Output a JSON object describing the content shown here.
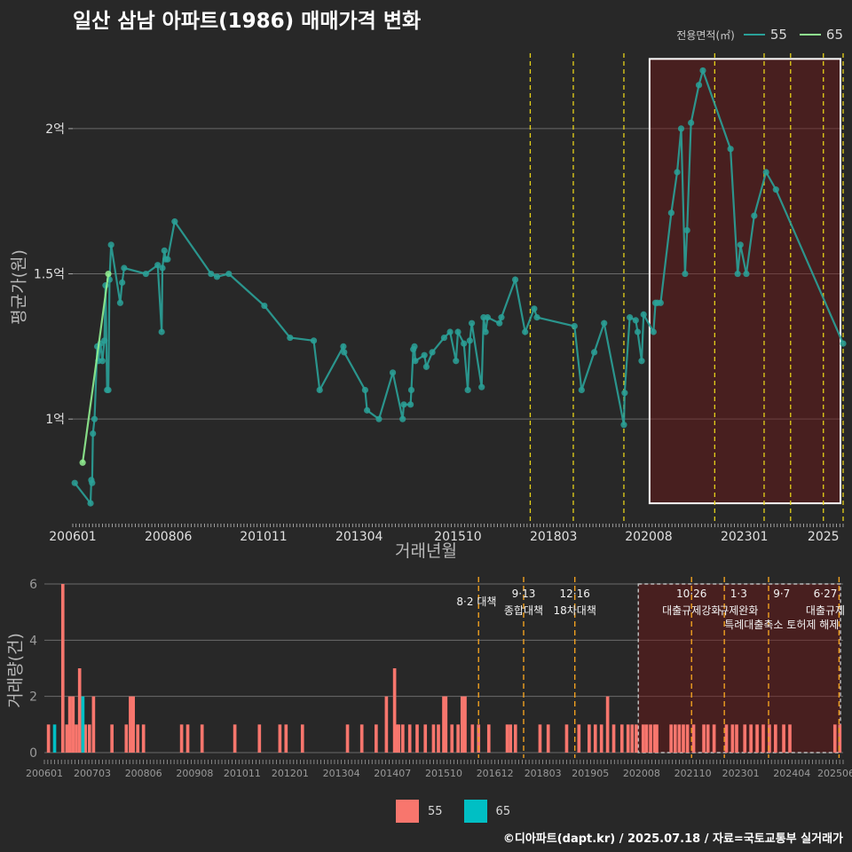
{
  "title": "일산 삼남 아파트(1986) 매매가격 변화",
  "footer": "©디아파트(dapt.kr) / 2025.07.18 / 자료=국토교통부 실거래가",
  "legend_top": {
    "title": "전용면적(㎡)",
    "items": [
      {
        "label": "55",
        "color": "#2aa198"
      },
      {
        "label": "65",
        "color": "#90ee90"
      }
    ]
  },
  "legend_bottom": {
    "items": [
      {
        "label": "55",
        "color": "#f8766d"
      },
      {
        "label": "65",
        "color": "#00bfc4"
      }
    ]
  },
  "chart_data": [
    {
      "type": "line",
      "title": "일산 삼남 아파트(1986) 매매가격 변화",
      "xlabel": "거래년월",
      "ylabel": "평균가(원)",
      "x_range": [
        2006.0,
        2025.5
      ],
      "y_range": [
        0.64,
        2.29
      ],
      "x_ticks": [
        {
          "v": 2006.0,
          "label": "200601"
        },
        {
          "v": 2008.42,
          "label": "200806"
        },
        {
          "v": 2010.83,
          "label": "201011"
        },
        {
          "v": 2013.25,
          "label": "201304"
        },
        {
          "v": 2015.75,
          "label": "201510"
        },
        {
          "v": 2018.17,
          "label": "201803"
        },
        {
          "v": 2020.58,
          "label": "202008"
        },
        {
          "v": 2023.0,
          "label": "202301"
        },
        {
          "v": 2025.0,
          "label": "2025"
        }
      ],
      "y_ticks": [
        {
          "v": 1.0,
          "label": "1억"
        },
        {
          "v": 1.5,
          "label": "1.5억"
        },
        {
          "v": 2.0,
          "label": "2억"
        }
      ],
      "policy_lines": [
        2017.58,
        2018.67,
        2019.95,
        2022.25,
        2023.5,
        2024.17,
        2025.0,
        2025.5
      ],
      "highlight": {
        "x0": 2020.6,
        "x1": 2025.5,
        "y0": 0.71,
        "y1": 2.24
      },
      "series": [
        {
          "name": "55",
          "color": "#2aa198",
          "points": [
            [
              2006.05,
              0.78
            ],
            [
              2006.45,
              0.71
            ],
            [
              2006.47,
              0.79
            ],
            [
              2006.49,
              0.78
            ],
            [
              2006.51,
              0.95
            ],
            [
              2006.55,
              1.0
            ],
            [
              2006.62,
              1.25
            ],
            [
              2006.65,
              1.2
            ],
            [
              2006.7,
              1.26
            ],
            [
              2006.75,
              1.2
            ],
            [
              2006.8,
              1.27
            ],
            [
              2006.83,
              1.46
            ],
            [
              2006.87,
              1.1
            ],
            [
              2006.9,
              1.1
            ],
            [
              2006.93,
              1.48
            ],
            [
              2006.97,
              1.6
            ],
            [
              2007.2,
              1.4
            ],
            [
              2007.25,
              1.47
            ],
            [
              2007.3,
              1.52
            ],
            [
              2007.85,
              1.5
            ],
            [
              2008.15,
              1.53
            ],
            [
              2008.25,
              1.3
            ],
            [
              2008.27,
              1.52
            ],
            [
              2008.32,
              1.58
            ],
            [
              2008.35,
              1.55
            ],
            [
              2008.4,
              1.55
            ],
            [
              2008.58,
              1.68
            ],
            [
              2009.5,
              1.5
            ],
            [
              2009.65,
              1.49
            ],
            [
              2009.95,
              1.5
            ],
            [
              2010.85,
              1.39
            ],
            [
              2011.5,
              1.28
            ],
            [
              2012.1,
              1.27
            ],
            [
              2012.25,
              1.1
            ],
            [
              2012.85,
              1.25
            ],
            [
              2012.87,
              1.23
            ],
            [
              2013.4,
              1.1
            ],
            [
              2013.45,
              1.03
            ],
            [
              2013.75,
              1.0
            ],
            [
              2014.1,
              1.16
            ],
            [
              2014.35,
              1.0
            ],
            [
              2014.38,
              1.05
            ],
            [
              2014.55,
              1.05
            ],
            [
              2014.57,
              1.1
            ],
            [
              2014.62,
              1.24
            ],
            [
              2014.65,
              1.25
            ],
            [
              2014.67,
              1.2
            ],
            [
              2014.9,
              1.22
            ],
            [
              2014.95,
              1.18
            ],
            [
              2015.1,
              1.23
            ],
            [
              2015.4,
              1.28
            ],
            [
              2015.55,
              1.3
            ],
            [
              2015.7,
              1.2
            ],
            [
              2015.75,
              1.3
            ],
            [
              2015.9,
              1.26
            ],
            [
              2016.0,
              1.1
            ],
            [
              2016.05,
              1.27
            ],
            [
              2016.1,
              1.33
            ],
            [
              2016.35,
              1.11
            ],
            [
              2016.4,
              1.35
            ],
            [
              2016.45,
              1.3
            ],
            [
              2016.5,
              1.35
            ],
            [
              2016.8,
              1.33
            ],
            [
              2016.85,
              1.35
            ],
            [
              2017.2,
              1.48
            ],
            [
              2017.45,
              1.3
            ],
            [
              2017.68,
              1.38
            ],
            [
              2017.75,
              1.35
            ],
            [
              2018.7,
              1.32
            ],
            [
              2018.88,
              1.1
            ],
            [
              2019.2,
              1.23
            ],
            [
              2019.45,
              1.33
            ],
            [
              2019.95,
              0.98
            ],
            [
              2019.97,
              1.09
            ],
            [
              2020.1,
              1.35
            ],
            [
              2020.25,
              1.34
            ],
            [
              2020.3,
              1.3
            ],
            [
              2020.4,
              1.2
            ],
            [
              2020.45,
              1.36
            ],
            [
              2020.7,
              1.3
            ],
            [
              2020.75,
              1.4
            ],
            [
              2020.8,
              1.4
            ],
            [
              2020.88,
              1.4
            ],
            [
              2021.15,
              1.71
            ],
            [
              2021.3,
              1.85
            ],
            [
              2021.4,
              2.0
            ],
            [
              2021.5,
              1.5
            ],
            [
              2021.55,
              1.65
            ],
            [
              2021.65,
              2.02
            ],
            [
              2021.85,
              2.15
            ],
            [
              2021.95,
              2.2
            ],
            [
              2022.65,
              1.93
            ],
            [
              2022.83,
              1.5
            ],
            [
              2022.9,
              1.6
            ],
            [
              2023.05,
              1.5
            ],
            [
              2023.25,
              1.7
            ],
            [
              2023.55,
              1.85
            ],
            [
              2023.8,
              1.79
            ],
            [
              2025.5,
              1.26
            ]
          ]
        },
        {
          "name": "65",
          "color": "#90ee90",
          "points": [
            [
              2006.25,
              0.85
            ],
            [
              2006.9,
              1.5
            ]
          ]
        }
      ]
    },
    {
      "type": "bar",
      "ylabel": "거래량(건)",
      "x_range": [
        2006.0,
        2025.5
      ],
      "y_range": [
        0,
        6
      ],
      "x_ticks": [
        {
          "v": 2006.0,
          "label": "200601"
        },
        {
          "v": 2007.17,
          "label": "200703"
        },
        {
          "v": 2008.42,
          "label": "200806"
        },
        {
          "v": 2009.67,
          "label": "200908"
        },
        {
          "v": 2010.83,
          "label": "201011"
        },
        {
          "v": 2012.0,
          "label": "201201"
        },
        {
          "v": 2013.25,
          "label": "201304"
        },
        {
          "v": 2014.5,
          "label": "201407"
        },
        {
          "v": 2015.75,
          "label": "201510"
        },
        {
          "v": 2017.0,
          "label": "201612"
        },
        {
          "v": 2018.17,
          "label": "201803"
        },
        {
          "v": 2019.33,
          "label": "201905"
        },
        {
          "v": 2020.58,
          "label": "202008"
        },
        {
          "v": 2021.83,
          "label": "202110"
        },
        {
          "v": 2023.0,
          "label": "202301"
        },
        {
          "v": 2024.25,
          "label": "202404"
        },
        {
          "v": 2025.42,
          "label": "202506"
        }
      ],
      "y_ticks": [
        {
          "v": 0,
          "label": "0"
        },
        {
          "v": 2,
          "label": "2"
        },
        {
          "v": 4,
          "label": "4"
        },
        {
          "v": 6,
          "label": "6"
        }
      ],
      "policy_lines": [
        2016.6,
        2017.7,
        2018.95,
        2021.8,
        2022.6,
        2023.68,
        2025.4
      ],
      "highlight": {
        "x0": 2020.5,
        "x1": 2025.5,
        "y0": 0,
        "y1": 6
      },
      "policy_labels": [
        {
          "x": 2016.55,
          "line1": "",
          "line2": "8·2 대책"
        },
        {
          "x": 2017.7,
          "line1": "9·13",
          "line2": "종합대책"
        },
        {
          "x": 2018.95,
          "line1": "12·16",
          "line2": "18차대책"
        },
        {
          "x": 2021.8,
          "line1": "10·26",
          "line2": "대출규제강화"
        },
        {
          "x": 2022.95,
          "line1": "1·3",
          "line2": "규제완화"
        },
        {
          "x": 2024.0,
          "line1": "9·7",
          "line2": "특례대출축소 토허제 해제"
        },
        {
          "x": 2025.4,
          "line1": "6·27",
          "line2": "대출규제"
        }
      ],
      "series": [
        {
          "name": "55",
          "color": "#f8766d",
          "bars": [
            [
              2006.1,
              1
            ],
            [
              2006.45,
              6
            ],
            [
              2006.55,
              1
            ],
            [
              2006.62,
              2
            ],
            [
              2006.7,
              2
            ],
            [
              2006.78,
              1
            ],
            [
              2006.86,
              3
            ],
            [
              2007.0,
              1
            ],
            [
              2007.1,
              1
            ],
            [
              2007.2,
              2
            ],
            [
              2007.65,
              1
            ],
            [
              2008.0,
              1
            ],
            [
              2008.1,
              2
            ],
            [
              2008.17,
              2
            ],
            [
              2008.28,
              1
            ],
            [
              2008.42,
              1
            ],
            [
              2009.35,
              1
            ],
            [
              2009.5,
              1
            ],
            [
              2009.85,
              1
            ],
            [
              2010.65,
              1
            ],
            [
              2011.25,
              1
            ],
            [
              2011.75,
              1
            ],
            [
              2011.9,
              1
            ],
            [
              2012.3,
              1
            ],
            [
              2013.4,
              1
            ],
            [
              2013.75,
              1
            ],
            [
              2014.1,
              1
            ],
            [
              2014.35,
              2
            ],
            [
              2014.55,
              3
            ],
            [
              2014.6,
              1
            ],
            [
              2014.65,
              1
            ],
            [
              2014.75,
              1
            ],
            [
              2014.92,
              1
            ],
            [
              2015.1,
              1
            ],
            [
              2015.3,
              1
            ],
            [
              2015.5,
              1
            ],
            [
              2015.62,
              1
            ],
            [
              2015.75,
              2
            ],
            [
              2015.8,
              2
            ],
            [
              2015.95,
              1
            ],
            [
              2016.1,
              1
            ],
            [
              2016.2,
              2
            ],
            [
              2016.27,
              2
            ],
            [
              2016.45,
              1
            ],
            [
              2016.6,
              1
            ],
            [
              2016.85,
              1
            ],
            [
              2017.3,
              1
            ],
            [
              2017.38,
              1
            ],
            [
              2017.5,
              1
            ],
            [
              2018.1,
              1
            ],
            [
              2018.3,
              1
            ],
            [
              2018.75,
              1
            ],
            [
              2019.05,
              1
            ],
            [
              2019.3,
              1
            ],
            [
              2019.45,
              1
            ],
            [
              2019.6,
              1
            ],
            [
              2019.75,
              2
            ],
            [
              2019.9,
              1
            ],
            [
              2020.1,
              1
            ],
            [
              2020.25,
              1
            ],
            [
              2020.35,
              1
            ],
            [
              2020.45,
              1
            ],
            [
              2020.62,
              1
            ],
            [
              2020.7,
              1
            ],
            [
              2020.8,
              1
            ],
            [
              2020.9,
              1
            ],
            [
              2020.95,
              1
            ],
            [
              2021.3,
              1
            ],
            [
              2021.4,
              1
            ],
            [
              2021.5,
              1
            ],
            [
              2021.6,
              1
            ],
            [
              2021.7,
              1
            ],
            [
              2021.85,
              1
            ],
            [
              2022.1,
              1
            ],
            [
              2022.2,
              1
            ],
            [
              2022.35,
              1
            ],
            [
              2022.65,
              1
            ],
            [
              2022.8,
              1
            ],
            [
              2022.9,
              1
            ],
            [
              2023.1,
              1
            ],
            [
              2023.25,
              1
            ],
            [
              2023.4,
              1
            ],
            [
              2023.55,
              1
            ],
            [
              2023.7,
              1
            ],
            [
              2023.85,
              1
            ],
            [
              2024.05,
              1
            ],
            [
              2024.2,
              1
            ],
            [
              2025.3,
              1
            ],
            [
              2025.42,
              1
            ]
          ]
        },
        {
          "name": "65",
          "color": "#00bfc4",
          "bars": [
            [
              2006.25,
              1
            ],
            [
              2006.94,
              2
            ]
          ]
        }
      ]
    }
  ]
}
